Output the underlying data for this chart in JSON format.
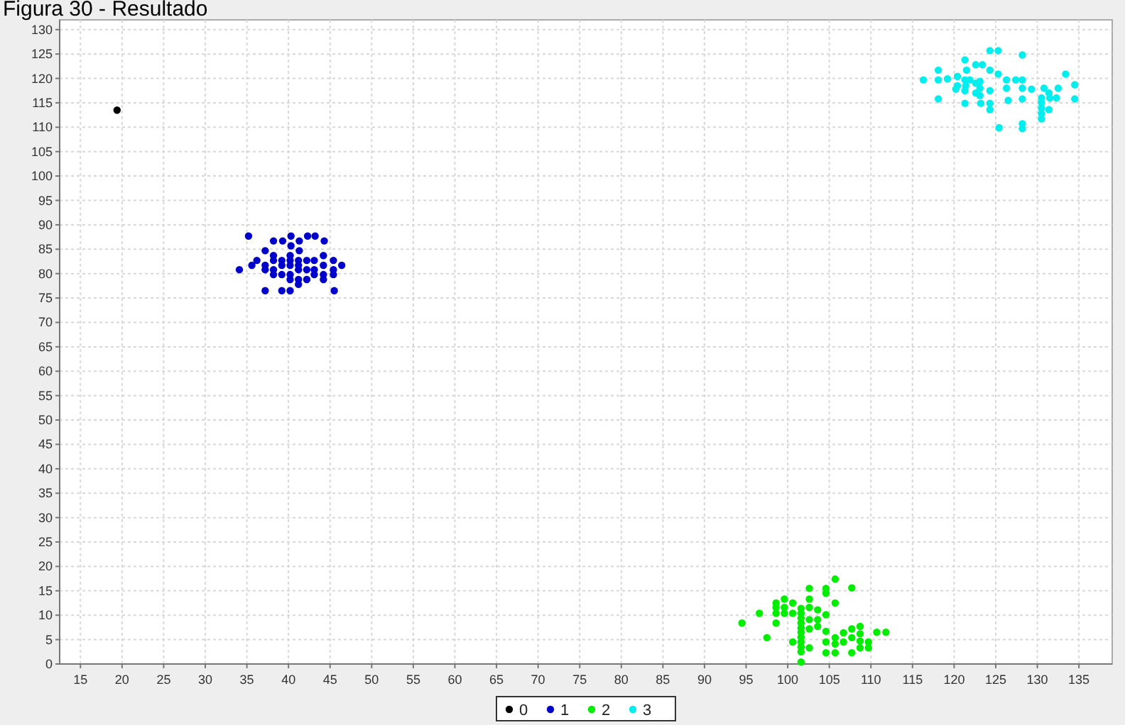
{
  "chart_data": {
    "type": "scatter",
    "title": "Figura 30 - Resultado",
    "xlim": [
      12.5,
      139
    ],
    "ylim": [
      0,
      132
    ],
    "xticks": [
      15,
      20,
      25,
      30,
      35,
      40,
      45,
      50,
      55,
      60,
      65,
      70,
      75,
      80,
      85,
      90,
      95,
      100,
      105,
      110,
      115,
      120,
      125,
      130,
      135
    ],
    "yticks": [
      0,
      5,
      10,
      15,
      20,
      25,
      30,
      35,
      40,
      45,
      50,
      55,
      60,
      65,
      70,
      75,
      80,
      85,
      90,
      95,
      100,
      105,
      110,
      115,
      120,
      125,
      130
    ],
    "grid": true,
    "legend": "bottom",
    "marker": "circle",
    "series": [
      {
        "name": "0",
        "color": "#000000",
        "x": [
          19.4
        ],
        "values": [
          113.5
        ]
      },
      {
        "name": "1",
        "color": "#0000cc",
        "x": [
          35.2,
          34.1,
          38.2,
          39.3,
          40.3,
          41.3,
          42.3,
          43.2,
          44.3,
          40.3,
          41.3,
          37.2,
          38.2,
          40.2,
          44.2,
          36.2,
          38.2,
          39.2,
          40.2,
          41.2,
          42.2,
          43.1,
          45.4,
          35.6,
          37.2,
          39.2,
          40.2,
          41.2,
          42.2,
          44.2,
          46.4,
          37.2,
          38.2,
          39.2,
          40.2,
          41.2,
          43.1,
          44.2,
          45.4,
          38.2,
          41.2,
          42.2,
          43.1,
          44.2,
          45.4,
          37.2,
          39.2,
          40.2,
          41.2,
          45.5,
          40.2
        ],
        "values": [
          87.7,
          80.8,
          86.7,
          86.7,
          87.7,
          86.7,
          87.7,
          87.7,
          86.7,
          85.7,
          84.7,
          84.7,
          83.7,
          83.7,
          83.7,
          82.7,
          82.7,
          82.7,
          82.7,
          82.7,
          82.7,
          82.7,
          82.7,
          81.7,
          81.7,
          81.7,
          81.7,
          81.7,
          80.8,
          81.7,
          81.7,
          80.8,
          80.8,
          79.8,
          79.8,
          80.8,
          80.8,
          79.8,
          80.8,
          79.8,
          78.8,
          78.8,
          79.8,
          78.8,
          79.8,
          76.5,
          76.5,
          76.5,
          77.8,
          76.5,
          78.8
        ]
      },
      {
        "name": "2",
        "color": "#00ee00",
        "x": [
          94.5,
          96.6,
          97.5,
          98.6,
          98.6,
          98.6,
          98.6,
          99.6,
          99.6,
          99.6,
          100.6,
          100.6,
          100.6,
          101.6,
          101.6,
          101.6,
          101.6,
          101.6,
          101.6,
          101.6,
          101.6,
          101.6,
          101.6,
          101.6,
          102.6,
          102.6,
          102.6,
          102.6,
          102.6,
          102.6,
          103.6,
          103.6,
          103.6,
          104.6,
          104.6,
          104.6,
          104.6,
          104.6,
          104.6,
          105.7,
          105.7,
          105.7,
          105.7,
          105.7,
          106.7,
          106.7,
          107.7,
          107.7,
          107.7,
          107.7,
          108.7,
          108.7,
          108.7,
          108.7,
          109.7,
          109.7,
          110.7,
          111.8
        ],
        "values": [
          8.4,
          10.4,
          5.4,
          12.5,
          11.6,
          10.4,
          8.4,
          13.3,
          11.6,
          10.4,
          12.5,
          10.4,
          4.5,
          11.4,
          10.4,
          9.4,
          8.4,
          7.4,
          6.5,
          5.5,
          4.5,
          3.5,
          2.5,
          0.4,
          15.5,
          13.3,
          11.6,
          9.1,
          7.2,
          3.3,
          11.1,
          9.1,
          7.7,
          15.5,
          14.5,
          10.1,
          6.7,
          4.5,
          2.3,
          17.4,
          12.5,
          5.4,
          4.1,
          2.3,
          6.4,
          4.5,
          15.6,
          7.2,
          5.4,
          2.3,
          7.7,
          6.2,
          4.7,
          3.3,
          4.5,
          3.3,
          6.5,
          6.5
        ]
      },
      {
        "name": "3",
        "color": "#00eeee",
        "x": [
          124.3,
          125.3,
          128.2,
          121.3,
          122.6,
          123.4,
          118.1,
          121.5,
          124.3,
          125.3,
          133.4,
          116.3,
          118.1,
          119.2,
          120.4,
          121.3,
          121.9,
          120.4,
          121.4,
          122.6,
          123.1,
          123.1,
          123.1,
          126.3,
          127.4,
          128.2,
          126.3,
          128.2,
          134.5,
          120.2,
          121.3,
          122.6,
          124.3,
          129.3,
          130.8,
          132.5,
          131.4,
          126.5,
          128.2,
          130.5,
          130.5,
          130.5,
          130.5,
          130.5,
          131.5,
          132.3,
          134.5,
          118.1,
          121.3,
          123.2,
          124.3,
          124.3,
          131.4,
          125.4,
          128.2,
          128.2
        ],
        "values": [
          125.7,
          125.7,
          124.8,
          123.8,
          122.8,
          122.8,
          121.7,
          121.7,
          121.7,
          120.9,
          120.9,
          119.7,
          119.7,
          119.9,
          120.4,
          119.7,
          119.7,
          118.5,
          118.5,
          119,
          119.4,
          118,
          116.5,
          119.7,
          119.7,
          119.7,
          118,
          118,
          118.7,
          117.8,
          117.5,
          117,
          117.5,
          117.8,
          118,
          118,
          117,
          115.5,
          115.8,
          116,
          115,
          113.9,
          112.8,
          111.7,
          116,
          116,
          115.8,
          115.8,
          114.9,
          114.9,
          114.9,
          113.6,
          113.6,
          109.9,
          110.7,
          109.7
        ]
      }
    ]
  }
}
